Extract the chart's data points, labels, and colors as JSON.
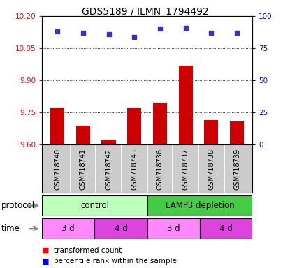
{
  "title": "GDS5189 / ILMN_1794492",
  "samples": [
    "GSM718740",
    "GSM718741",
    "GSM718742",
    "GSM718743",
    "GSM718736",
    "GSM718737",
    "GSM718738",
    "GSM718739"
  ],
  "bar_values": [
    9.77,
    9.69,
    9.625,
    9.77,
    9.795,
    9.97,
    9.715,
    9.71
  ],
  "percentile_values": [
    88,
    87,
    86,
    84,
    90,
    91,
    87,
    87
  ],
  "ylim": [
    9.6,
    10.2
  ],
  "yticks": [
    9.6,
    9.75,
    9.9,
    10.05,
    10.2
  ],
  "right_yticks": [
    0,
    25,
    50,
    75,
    100
  ],
  "right_ylim": [
    0,
    100
  ],
  "bar_color": "#cc0000",
  "dot_color": "#3333cc",
  "ctrl_color": "#bbffbb",
  "lamp_color": "#44cc44",
  "time_color_light": "#ff88ff",
  "time_color_dark": "#dd44dd",
  "sample_bg_color": "#cccccc",
  "legend_red": "transformed count",
  "legend_blue": "percentile rank within the sample",
  "time_labels": [
    "3 d",
    "4 d",
    "3 d",
    "4 d"
  ]
}
